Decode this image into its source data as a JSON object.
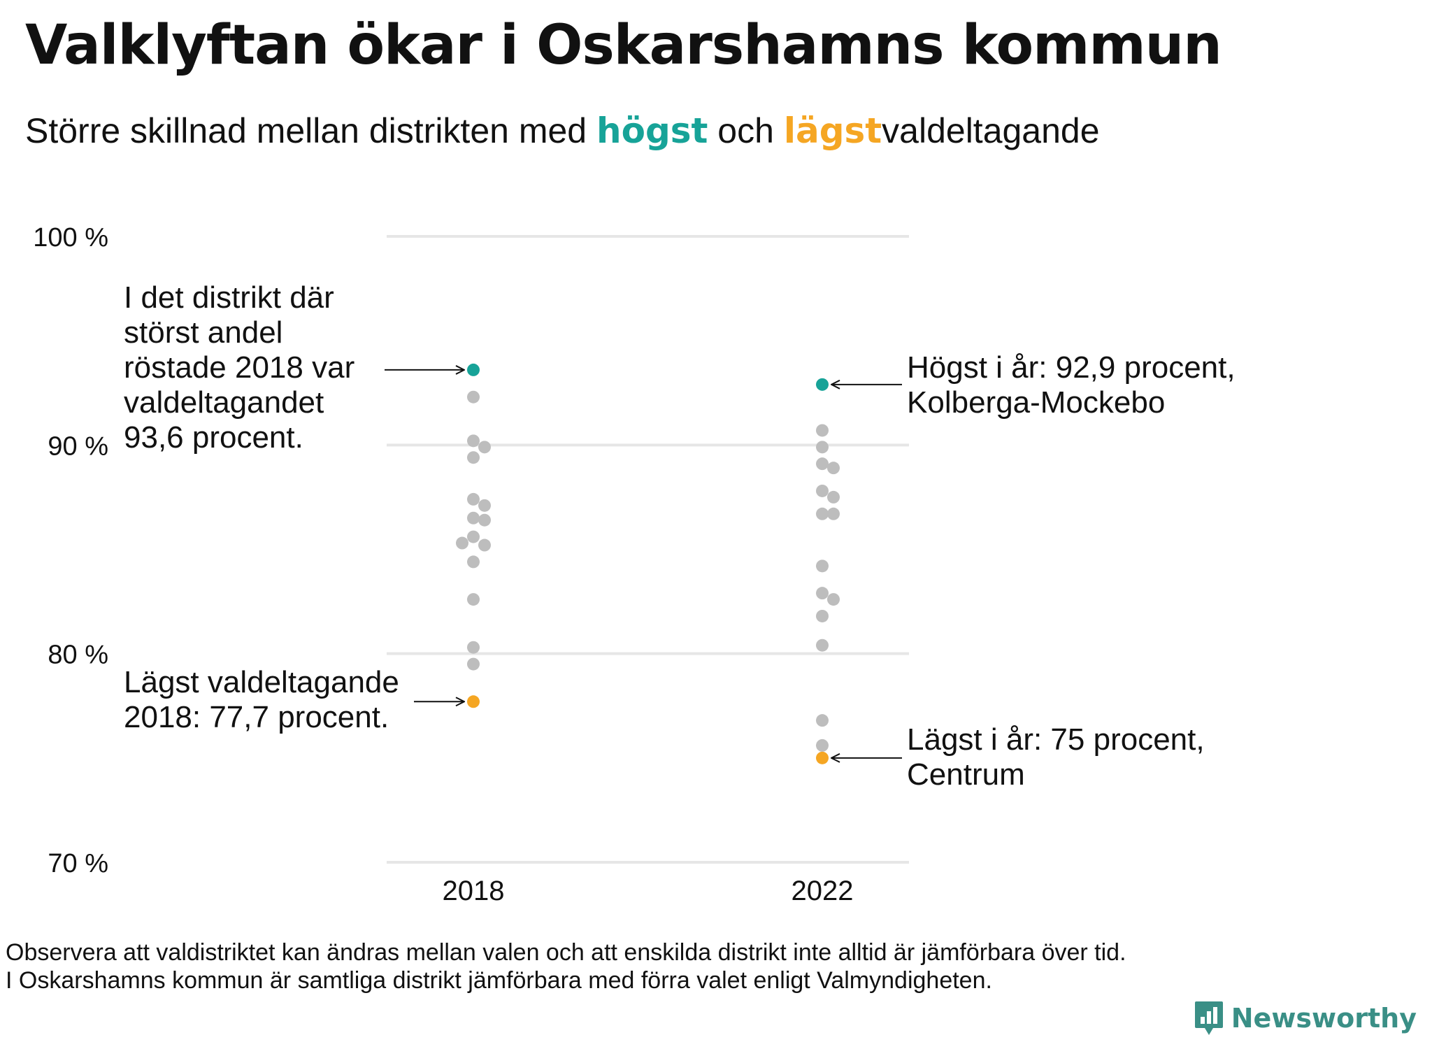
{
  "title": "Valklyftan ökar i Oskarshamns kommun",
  "subtitle": {
    "part1": "Större  skillnad  mellan  distrikten   med ",
    "highest": "högst",
    "part2": " och ",
    "lowest": "lägst",
    "part3": "valdeltagande"
  },
  "colors": {
    "highest": "#17a398",
    "lowest": "#f5a623",
    "other": "#bdbdbd",
    "grid": "#e6e6e6"
  },
  "chart_data": {
    "type": "scatter",
    "y_ticks": [
      "100 %",
      "90 %",
      "80 %",
      "70 %"
    ],
    "y_tick_values": [
      100,
      90,
      80,
      70
    ],
    "ylim": [
      70,
      100
    ],
    "categories": [
      "2018",
      "2022"
    ],
    "series": [
      {
        "category": "2018",
        "highest": 93.6,
        "lowest": 77.7,
        "others": [
          92.3,
          90.2,
          89.9,
          89.4,
          87.4,
          87.1,
          86.5,
          86.4,
          85.6,
          85.2,
          85.3,
          84.4,
          82.6,
          80.3,
          79.5
        ]
      },
      {
        "category": "2022",
        "highest": 92.9,
        "lowest": 75.0,
        "others": [
          90.7,
          89.9,
          89.1,
          88.9,
          87.8,
          87.5,
          86.7,
          86.7,
          84.2,
          82.9,
          82.6,
          81.8,
          80.4,
          76.8,
          75.6
        ]
      }
    ],
    "annotations": {
      "high_2018": [
        "I det distrikt där",
        "störst andel",
        "röstade 2018 var",
        "valdeltagandet",
        "93,6 procent."
      ],
      "low_2018": [
        "Lägst valdeltagande",
        "2018: 77,7 procent."
      ],
      "high_2022": [
        "Högst i år: 92,9 procent,",
        "Kolberga-Mockebo"
      ],
      "low_2022": [
        "Lägst i år: 75 procent,",
        "Centrum"
      ]
    }
  },
  "note": {
    "line1": "Observera att valdistriktet kan ändras mellan valen och att enskilda distrikt inte alltid är jämförbara över tid.",
    "line2": "I Oskarshamns kommun är samtliga distrikt jämförbara med förra valet enligt Valmyndigheten."
  },
  "brand": {
    "name": "Newsworthy",
    "icon": "bar-chart-speech-icon"
  }
}
